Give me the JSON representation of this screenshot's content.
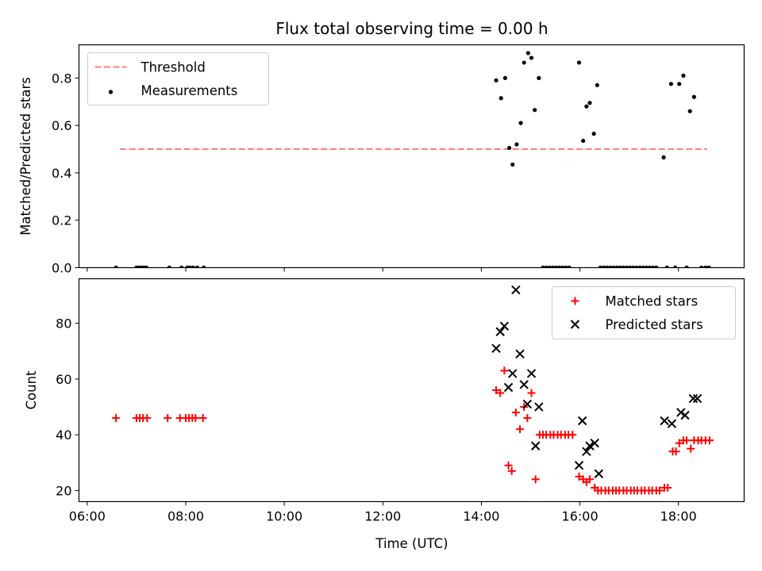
{
  "title": "Flux total observing time = 0.00 h",
  "xlabel": "Time (UTC)",
  "x_tick_labels": [
    "06:00",
    "08:00",
    "10:00",
    "12:00",
    "14:00",
    "16:00",
    "18:00"
  ],
  "colors": {
    "threshold": "#ff7f7f",
    "measurement": "#000000",
    "matched": "#ff0000",
    "predicted": "#000000"
  },
  "chart_data": [
    {
      "type": "scatter",
      "ylabel": "Matched/Predicted stars",
      "x_range": [
        "05:50",
        "19:20"
      ],
      "ylim": [
        0,
        0.94
      ],
      "yticks": [
        0.0,
        0.2,
        0.4,
        0.6,
        0.8
      ],
      "y_tick_labels": [
        "0.0",
        "0.2",
        "0.4",
        "0.6",
        "0.8"
      ],
      "legend_position": "upper-left",
      "threshold": {
        "name": "Threshold",
        "value": 0.5,
        "x_range": [
          "06:40",
          "18:35"
        ]
      },
      "series": [
        {
          "name": "Measurements",
          "points": [
            [
              "06:35",
              0.0
            ],
            [
              "07:00",
              0.0
            ],
            [
              "07:03",
              0.0
            ],
            [
              "07:06",
              0.0
            ],
            [
              "07:09",
              0.0
            ],
            [
              "07:12",
              0.0
            ],
            [
              "07:40",
              0.0
            ],
            [
              "07:55",
              0.0
            ],
            [
              "08:02",
              0.0
            ],
            [
              "08:05",
              0.0
            ],
            [
              "08:09",
              0.0
            ],
            [
              "08:14",
              0.0
            ],
            [
              "08:22",
              0.0
            ],
            [
              "14:18",
              0.79
            ],
            [
              "14:24",
              0.715
            ],
            [
              "14:29",
              0.8
            ],
            [
              "14:34",
              0.505
            ],
            [
              "14:38",
              0.435
            ],
            [
              "14:43",
              0.52
            ],
            [
              "14:48",
              0.61
            ],
            [
              "14:52",
              0.865
            ],
            [
              "14:57",
              0.905
            ],
            [
              "15:01",
              0.885
            ],
            [
              "15:05",
              0.665
            ],
            [
              "15:10",
              0.8
            ],
            [
              "15:15",
              0.0
            ],
            [
              "15:19",
              0.0
            ],
            [
              "15:23",
              0.0
            ],
            [
              "15:27",
              0.0
            ],
            [
              "15:31",
              0.0
            ],
            [
              "15:35",
              0.0
            ],
            [
              "15:39",
              0.0
            ],
            [
              "15:43",
              0.0
            ],
            [
              "15:47",
              0.0
            ],
            [
              "15:59",
              0.865
            ],
            [
              "16:04",
              0.535
            ],
            [
              "16:08",
              0.68
            ],
            [
              "16:12",
              0.695
            ],
            [
              "16:17",
              0.565
            ],
            [
              "16:21",
              0.77
            ],
            [
              "16:25",
              0.0
            ],
            [
              "16:29",
              0.0
            ],
            [
              "16:33",
              0.0
            ],
            [
              "16:37",
              0.0
            ],
            [
              "16:41",
              0.0
            ],
            [
              "16:45",
              0.0
            ],
            [
              "16:49",
              0.0
            ],
            [
              "16:53",
              0.0
            ],
            [
              "16:57",
              0.0
            ],
            [
              "17:01",
              0.0
            ],
            [
              "17:05",
              0.0
            ],
            [
              "17:09",
              0.0
            ],
            [
              "17:13",
              0.0
            ],
            [
              "17:17",
              0.0
            ],
            [
              "17:21",
              0.0
            ],
            [
              "17:25",
              0.0
            ],
            [
              "17:29",
              0.0
            ],
            [
              "17:33",
              0.0
            ],
            [
              "17:42",
              0.465
            ],
            [
              "17:46",
              0.0
            ],
            [
              "17:51",
              0.775
            ],
            [
              "17:56",
              0.0
            ],
            [
              "18:01",
              0.775
            ],
            [
              "18:06",
              0.81
            ],
            [
              "18:10",
              0.0
            ],
            [
              "18:14",
              0.66
            ],
            [
              "18:19",
              0.72
            ],
            [
              "18:28",
              0.0
            ],
            [
              "18:33",
              0.0
            ],
            [
              "18:37",
              0.0
            ]
          ]
        }
      ]
    },
    {
      "type": "scatter",
      "ylabel": "Count",
      "x_range": [
        "05:50",
        "19:20"
      ],
      "ylim": [
        16,
        96
      ],
      "yticks": [
        20,
        40,
        60,
        80
      ],
      "y_tick_labels": [
        "20",
        "40",
        "60",
        "80"
      ],
      "legend_position": "upper-right",
      "series": [
        {
          "name": "Matched stars",
          "marker": "plus",
          "points": [
            [
              "06:35",
              46
            ],
            [
              "07:00",
              46
            ],
            [
              "07:04",
              46
            ],
            [
              "07:08",
              46
            ],
            [
              "07:13",
              46
            ],
            [
              "07:38",
              46
            ],
            [
              "07:53",
              46
            ],
            [
              "08:00",
              46
            ],
            [
              "08:04",
              46
            ],
            [
              "08:08",
              46
            ],
            [
              "08:12",
              46
            ],
            [
              "08:21",
              46
            ],
            [
              "14:18",
              56
            ],
            [
              "14:23",
              55
            ],
            [
              "14:28",
              63
            ],
            [
              "14:33",
              29
            ],
            [
              "14:37",
              27
            ],
            [
              "14:42",
              48
            ],
            [
              "14:47",
              42
            ],
            [
              "14:52",
              50
            ],
            [
              "14:56",
              46
            ],
            [
              "15:01",
              55
            ],
            [
              "15:06",
              24
            ],
            [
              "15:11",
              40
            ],
            [
              "15:15",
              40
            ],
            [
              "15:19",
              40
            ],
            [
              "15:24",
              40
            ],
            [
              "15:28",
              40
            ],
            [
              "15:33",
              40
            ],
            [
              "15:37",
              40
            ],
            [
              "15:42",
              40
            ],
            [
              "15:46",
              40
            ],
            [
              "15:51",
              40
            ],
            [
              "15:59",
              25
            ],
            [
              "16:04",
              24
            ],
            [
              "16:08",
              23
            ],
            [
              "16:12",
              24
            ],
            [
              "16:18",
              21
            ],
            [
              "16:22",
              20
            ],
            [
              "16:26",
              20
            ],
            [
              "16:31",
              20
            ],
            [
              "16:35",
              20
            ],
            [
              "16:40",
              20
            ],
            [
              "16:44",
              20
            ],
            [
              "16:48",
              20
            ],
            [
              "16:53",
              20
            ],
            [
              "16:57",
              20
            ],
            [
              "17:02",
              20
            ],
            [
              "17:06",
              20
            ],
            [
              "17:10",
              20
            ],
            [
              "17:15",
              20
            ],
            [
              "17:19",
              20
            ],
            [
              "17:24",
              20
            ],
            [
              "17:28",
              20
            ],
            [
              "17:33",
              20
            ],
            [
              "17:37",
              20
            ],
            [
              "17:43",
              21
            ],
            [
              "17:47",
              21
            ],
            [
              "17:53",
              34
            ],
            [
              "17:57",
              34
            ],
            [
              "18:01",
              37
            ],
            [
              "18:06",
              38
            ],
            [
              "18:10",
              38
            ],
            [
              "18:15",
              35
            ],
            [
              "18:19",
              38
            ],
            [
              "18:24",
              38
            ],
            [
              "18:28",
              38
            ],
            [
              "18:33",
              38
            ],
            [
              "18:38",
              38
            ]
          ]
        },
        {
          "name": "Predicted stars",
          "marker": "x",
          "points": [
            [
              "14:18",
              71
            ],
            [
              "14:23",
              77
            ],
            [
              "14:28",
              79
            ],
            [
              "14:33",
              57
            ],
            [
              "14:38",
              62
            ],
            [
              "14:42",
              92
            ],
            [
              "14:47",
              69
            ],
            [
              "14:52",
              58
            ],
            [
              "14:56",
              51
            ],
            [
              "15:01",
              62
            ],
            [
              "15:06",
              36
            ],
            [
              "15:10",
              50
            ],
            [
              "15:59",
              29
            ],
            [
              "16:03",
              45
            ],
            [
              "16:08",
              34
            ],
            [
              "16:12",
              36
            ],
            [
              "16:18",
              37
            ],
            [
              "16:23",
              26
            ],
            [
              "17:43",
              45
            ],
            [
              "17:52",
              44
            ],
            [
              "18:03",
              48
            ],
            [
              "18:08",
              47
            ],
            [
              "18:18",
              53
            ],
            [
              "18:23",
              53
            ]
          ]
        }
      ]
    }
  ]
}
